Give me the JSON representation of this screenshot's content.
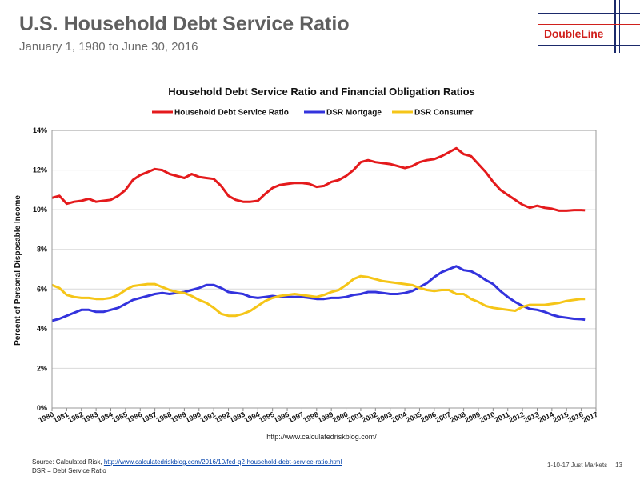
{
  "header": {
    "title": "U.S. Household Debt Service Ratio",
    "subtitle": "January 1, 1980 to June 30, 2016",
    "logo_text": "DoubleLine"
  },
  "footer": {
    "source_prefix": "Source: Calculated Risk, ",
    "source_link": "http://www.calculatedriskblog.com/2016/10/fed-q2-household-debt-service-ratio.html",
    "note": "DSR = Debt Service Ratio",
    "date_label": "1-10-17 Just Markets",
    "page_number": "13"
  },
  "chart_data": {
    "type": "line",
    "title": "Household Debt Service Ratio and Financial Obligation Ratios",
    "ylabel": "Percent of Personal Disposable Income",
    "source_note": "http://www.calculatedriskblog.com/",
    "ylim": [
      0,
      14
    ],
    "yticks": [
      "0%",
      "2%",
      "4%",
      "6%",
      "8%",
      "10%",
      "12%",
      "14%"
    ],
    "xlim": [
      1980,
      2017
    ],
    "xticks": [
      "1980",
      "1981",
      "1982",
      "1983",
      "1984",
      "1985",
      "1986",
      "1987",
      "1988",
      "1989",
      "1990",
      "1991",
      "1992",
      "1993",
      "1994",
      "1995",
      "1996",
      "1997",
      "1998",
      "1999",
      "2000",
      "2001",
      "2002",
      "2003",
      "2004",
      "2005",
      "2006",
      "2007",
      "2008",
      "2009",
      "2010",
      "2011",
      "2012",
      "2013",
      "2014",
      "2015",
      "2016",
      "2017"
    ],
    "grid": true,
    "legend_position": "top",
    "x": [
      1980,
      1980.5,
      1981,
      1981.5,
      1982,
      1982.5,
      1983,
      1983.5,
      1984,
      1984.5,
      1985,
      1985.5,
      1986,
      1986.5,
      1987,
      1987.5,
      1988,
      1988.5,
      1989,
      1989.5,
      1990,
      1990.5,
      1991,
      1991.5,
      1992,
      1992.5,
      1993,
      1993.5,
      1994,
      1994.5,
      1995,
      1995.5,
      1996,
      1996.5,
      1997,
      1997.5,
      1998,
      1998.5,
      1999,
      1999.5,
      2000,
      2000.5,
      2001,
      2001.5,
      2002,
      2002.5,
      2003,
      2003.5,
      2004,
      2004.5,
      2005,
      2005.5,
      2006,
      2006.5,
      2007,
      2007.5,
      2008,
      2008.5,
      2009,
      2009.5,
      2010,
      2010.5,
      2011,
      2011.5,
      2012,
      2012.5,
      2013,
      2013.5,
      2014,
      2014.5,
      2015,
      2015.5,
      2016,
      2016.25
    ],
    "series": [
      {
        "name": "Household Debt Service Ratio",
        "color": "#e41a1c",
        "values": [
          10.6,
          10.7,
          10.3,
          10.4,
          10.45,
          10.55,
          10.4,
          10.45,
          10.5,
          10.7,
          11.0,
          11.5,
          11.75,
          11.9,
          12.05,
          12.0,
          11.8,
          11.7,
          11.6,
          11.8,
          11.65,
          11.6,
          11.55,
          11.2,
          10.7,
          10.5,
          10.4,
          10.4,
          10.45,
          10.8,
          11.1,
          11.25,
          11.3,
          11.35,
          11.35,
          11.3,
          11.15,
          11.2,
          11.4,
          11.5,
          11.7,
          12.0,
          12.4,
          12.5,
          12.4,
          12.35,
          12.3,
          12.2,
          12.1,
          12.2,
          12.4,
          12.5,
          12.55,
          12.7,
          12.9,
          13.1,
          12.8,
          12.7,
          12.3,
          11.9,
          11.4,
          11.0,
          10.75,
          10.5,
          10.25,
          10.1,
          10.2,
          10.1,
          10.05,
          9.95,
          9.95,
          9.98,
          9.98,
          9.97
        ]
      },
      {
        "name": "DSR Mortgage",
        "color": "#3333dd",
        "values": [
          4.4,
          4.5,
          4.65,
          4.8,
          4.95,
          4.95,
          4.85,
          4.85,
          4.95,
          5.05,
          5.25,
          5.45,
          5.55,
          5.65,
          5.75,
          5.8,
          5.75,
          5.8,
          5.85,
          5.95,
          6.05,
          6.2,
          6.2,
          6.05,
          5.85,
          5.8,
          5.75,
          5.6,
          5.55,
          5.6,
          5.65,
          5.6,
          5.6,
          5.6,
          5.6,
          5.55,
          5.5,
          5.5,
          5.55,
          5.55,
          5.6,
          5.7,
          5.75,
          5.85,
          5.85,
          5.8,
          5.75,
          5.75,
          5.8,
          5.9,
          6.1,
          6.3,
          6.6,
          6.85,
          7.0,
          7.15,
          6.95,
          6.9,
          6.7,
          6.45,
          6.25,
          5.9,
          5.6,
          5.35,
          5.15,
          5.0,
          4.95,
          4.85,
          4.7,
          4.6,
          4.55,
          4.5,
          4.48,
          4.45
        ]
      },
      {
        "name": "DSR Consumer",
        "color": "#f5c518",
        "values": [
          6.2,
          6.05,
          5.7,
          5.6,
          5.55,
          5.55,
          5.5,
          5.5,
          5.55,
          5.7,
          5.95,
          6.15,
          6.2,
          6.25,
          6.25,
          6.1,
          5.95,
          5.85,
          5.8,
          5.65,
          5.45,
          5.3,
          5.05,
          4.75,
          4.65,
          4.65,
          4.75,
          4.9,
          5.15,
          5.4,
          5.55,
          5.65,
          5.7,
          5.75,
          5.7,
          5.65,
          5.6,
          5.7,
          5.85,
          5.95,
          6.2,
          6.5,
          6.65,
          6.6,
          6.5,
          6.4,
          6.35,
          6.3,
          6.25,
          6.2,
          6.05,
          5.95,
          5.9,
          5.95,
          5.95,
          5.75,
          5.75,
          5.5,
          5.35,
          5.15,
          5.05,
          5.0,
          4.95,
          4.9,
          5.1,
          5.2,
          5.2,
          5.2,
          5.25,
          5.3,
          5.4,
          5.45,
          5.5,
          5.5
        ]
      }
    ]
  }
}
